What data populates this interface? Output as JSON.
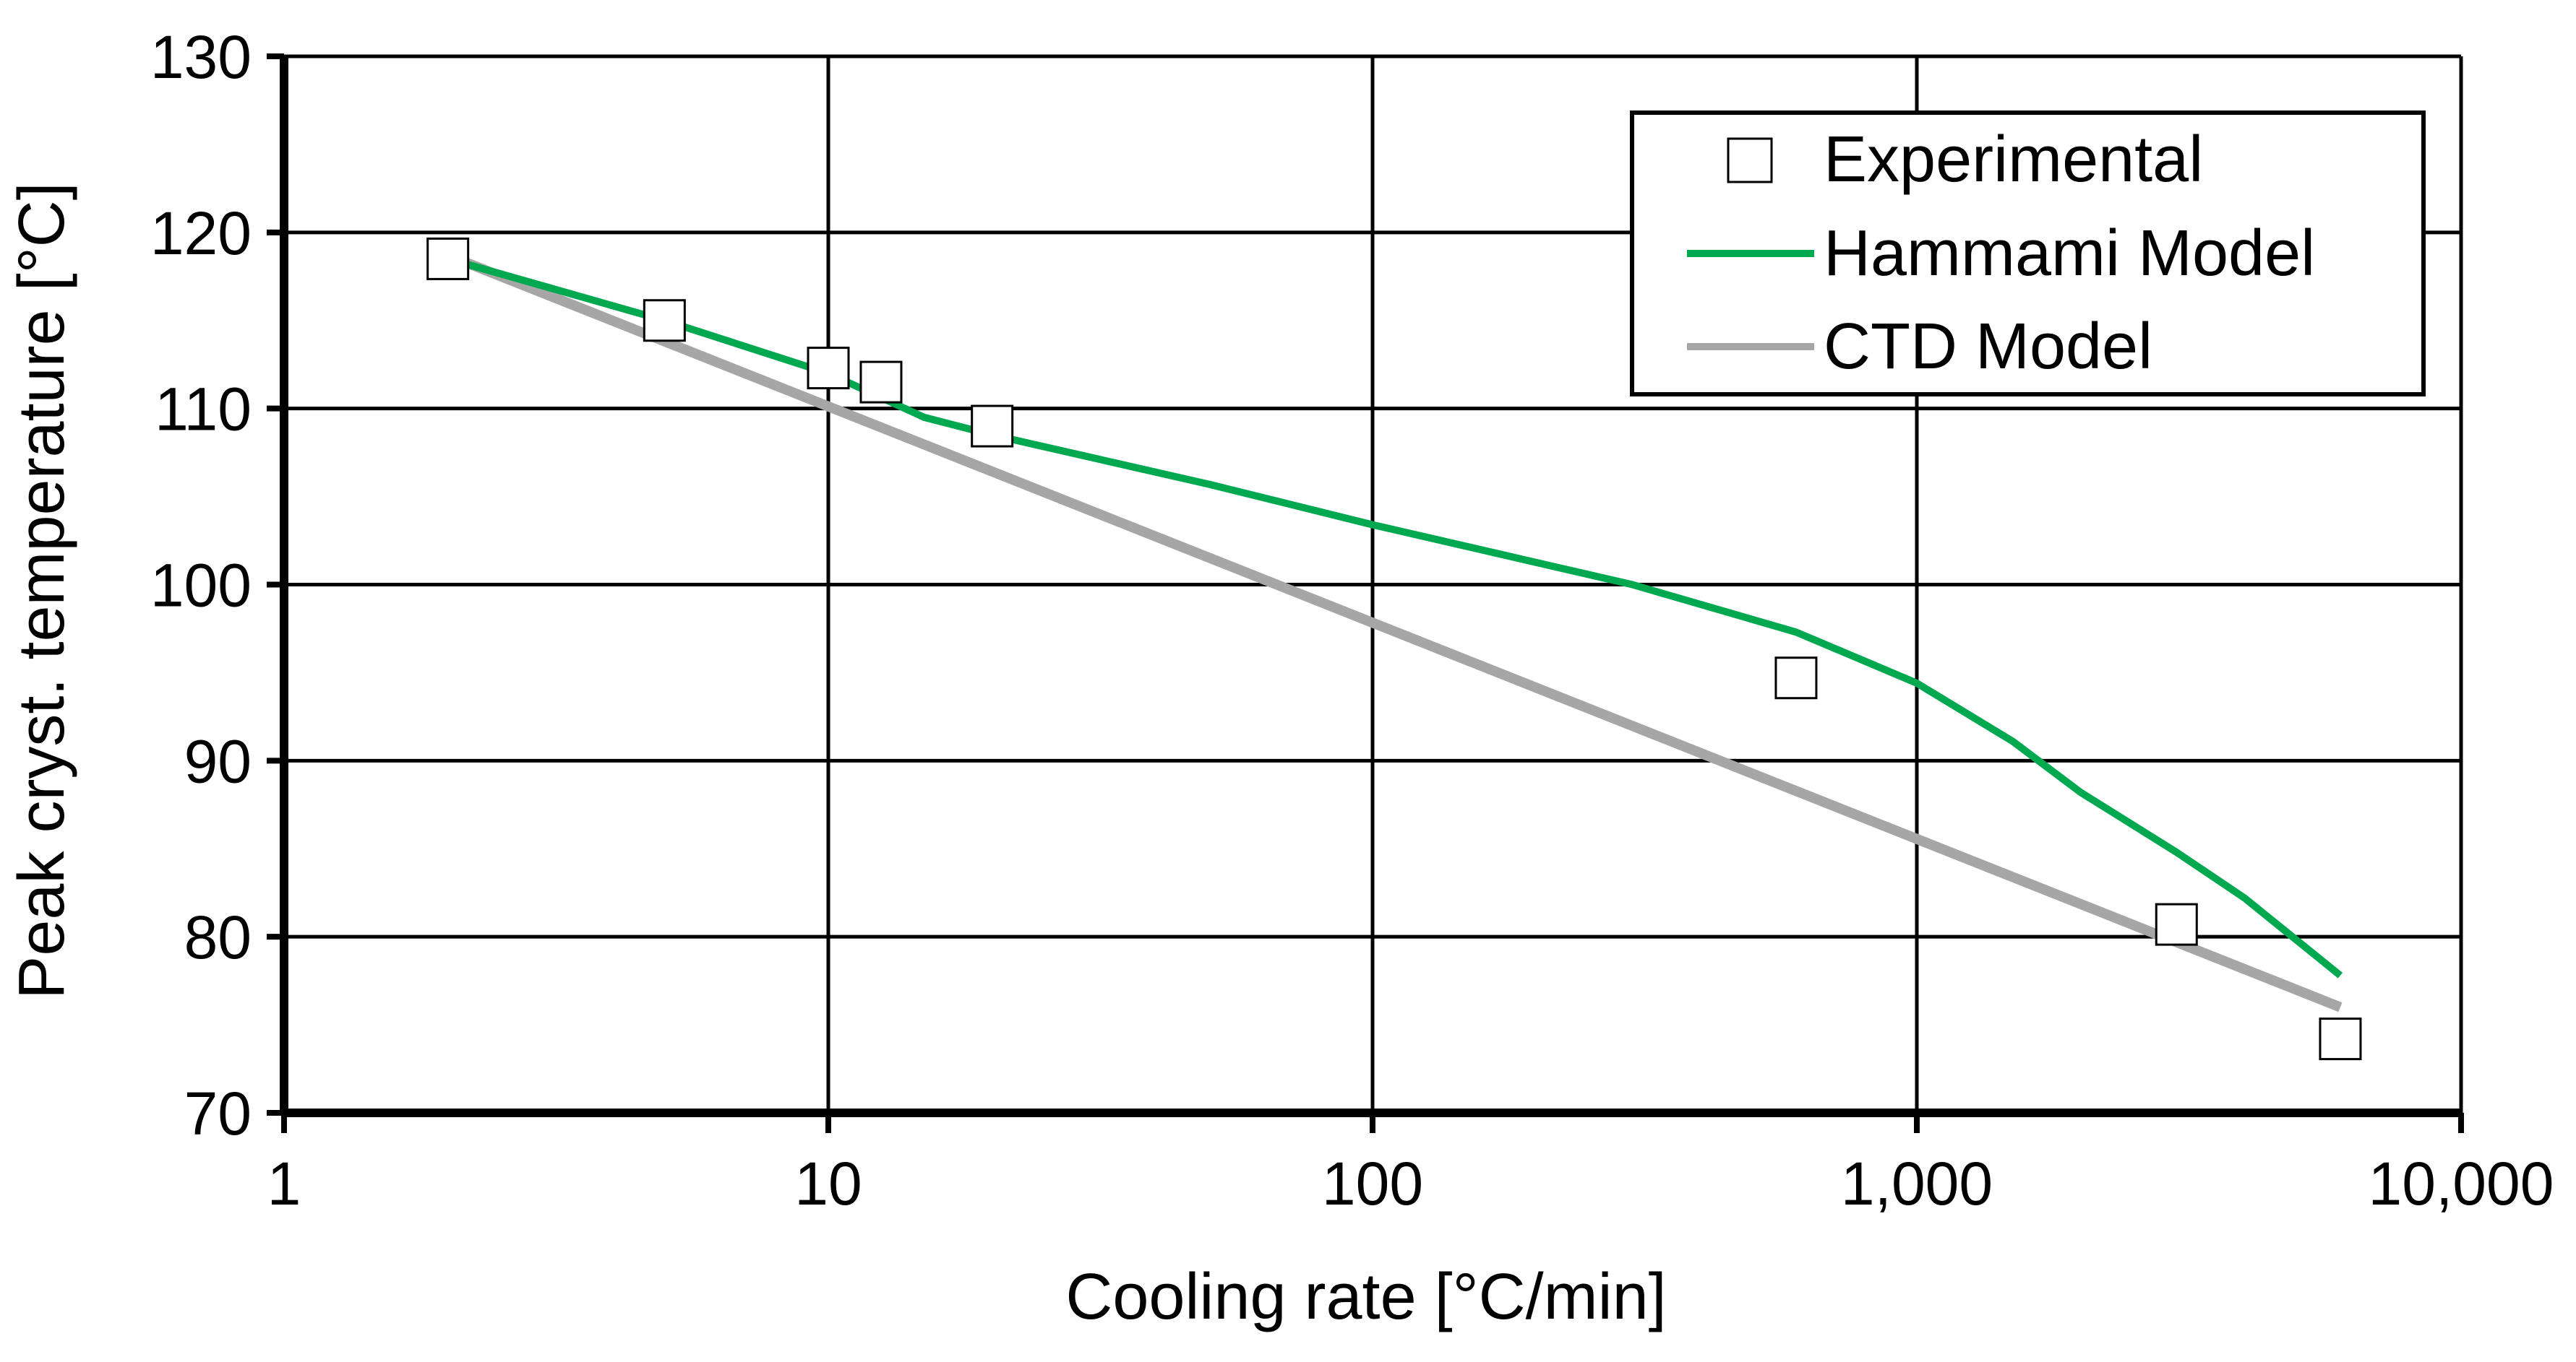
{
  "chart_data": {
    "type": "line",
    "title": "",
    "xlabel": "Cooling rate   [°C/min]",
    "ylabel": "Peak cryst. temperature   [°C]",
    "xscale": "log",
    "xlim": [
      1,
      10000
    ],
    "ylim": [
      70,
      130
    ],
    "grid": true,
    "legend_position": "top-right",
    "x_tick_values": [
      1,
      10,
      100,
      1000,
      10000
    ],
    "x_tick_labels": [
      "1",
      "10",
      "100",
      "1,000",
      "10,000"
    ],
    "y_tick_values": [
      70,
      80,
      90,
      100,
      110,
      120,
      130
    ],
    "y_tick_labels": [
      "70",
      "80",
      "90",
      "100",
      "110",
      "120",
      "130"
    ],
    "series": [
      {
        "name": "Experimental",
        "kind": "markers",
        "marker": "open-square",
        "color": "#000000",
        "x": [
          2,
          5,
          10,
          12.5,
          20,
          600,
          3000,
          6000
        ],
        "y": [
          118.5,
          115,
          112.3,
          111.5,
          109,
          94.7,
          80.7,
          74.2
        ]
      },
      {
        "name": "Hammami Model",
        "kind": "line",
        "color": "#00a84f",
        "x": [
          2,
          5,
          10,
          15,
          20,
          50,
          100,
          300,
          600,
          1000,
          1500,
          2000,
          3000,
          4000,
          6000
        ],
        "y": [
          118.5,
          115,
          112,
          109.5,
          108.5,
          105.7,
          103.4,
          100.0,
          97.3,
          94.4,
          91.1,
          88.2,
          84.8,
          82.2,
          77.8
        ]
      },
      {
        "name": "CTD Model",
        "kind": "line",
        "color": "#a6a6a6",
        "x": [
          2,
          6000
        ],
        "y": [
          118.7,
          76.0
        ]
      }
    ]
  }
}
